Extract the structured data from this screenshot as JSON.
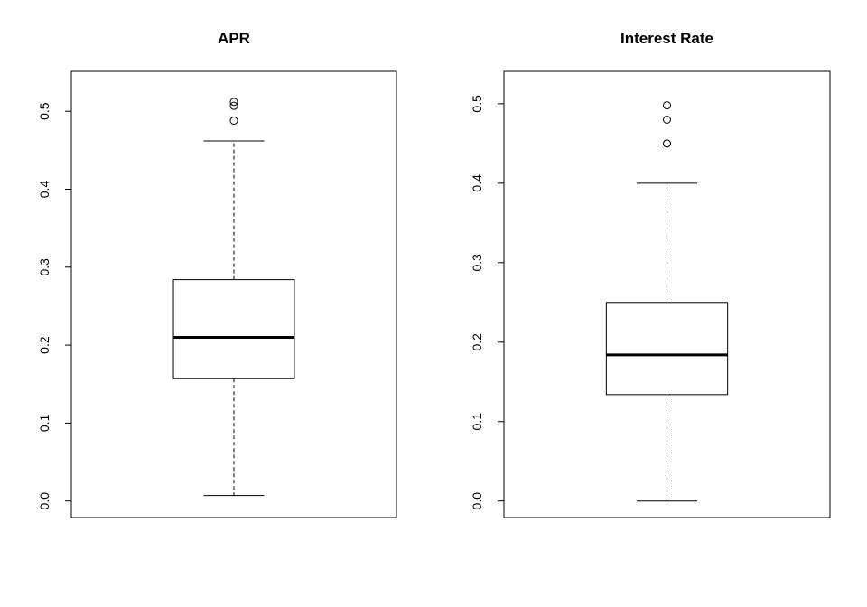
{
  "chart_data": [
    {
      "type": "box",
      "title": "APR",
      "xlabel": "",
      "ylabel": "",
      "ylim": [
        0,
        0.53
      ],
      "yticks": [
        0.0,
        0.1,
        0.2,
        0.3,
        0.4,
        0.5
      ],
      "ytick_labels": [
        "0.0",
        "0.1",
        "0.2",
        "0.3",
        "0.4",
        "0.5"
      ],
      "box": {
        "whisker_low": 0.007,
        "q1": 0.157,
        "median": 0.21,
        "q3": 0.284,
        "whisker_high": 0.462,
        "outliers": [
          0.488,
          0.507,
          0.512
        ]
      }
    },
    {
      "type": "box",
      "title": "Interest Rate",
      "xlabel": "",
      "ylabel": "",
      "ylim": [
        0,
        0.52
      ],
      "yticks": [
        0.0,
        0.1,
        0.2,
        0.3,
        0.4,
        0.5
      ],
      "ytick_labels": [
        "0.0",
        "0.1",
        "0.2",
        "0.3",
        "0.4",
        "0.5"
      ],
      "box": {
        "whisker_low": 0.0,
        "q1": 0.134,
        "median": 0.184,
        "q3": 0.25,
        "whisker_high": 0.4,
        "outliers": [
          0.45,
          0.45,
          0.48,
          0.498
        ]
      }
    }
  ]
}
